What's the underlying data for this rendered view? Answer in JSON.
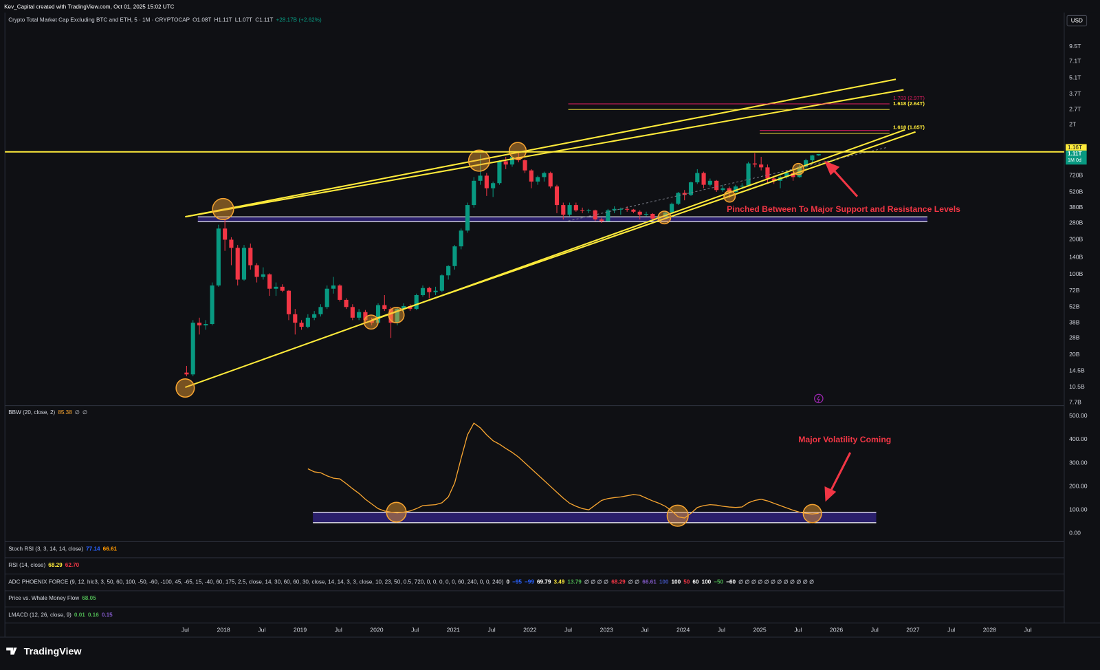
{
  "header": "Kev_Capital created with TradingView.com, Oct 01, 2025 15:02 UTC",
  "currency_button": "USD",
  "brand": "TradingView",
  "chart_data": [
    {
      "type": "candlestick",
      "title": "Crypto Total Market Cap Excluding BTC and ETH, 5 · 1M · CRYPTOCAP",
      "ohlc_legend": [
        "O1.08T",
        "H1.11T",
        "L1.07T",
        "C1.11T",
        "+28.17B (+2.62%)"
      ],
      "log_scale": true,
      "ylim": [
        7.24,
        18800
      ],
      "yticks": [
        {
          "value": 9500,
          "label": "9.5T"
        },
        {
          "value": 7100,
          "label": "7.1T"
        },
        {
          "value": 5100,
          "label": "5.1T"
        },
        {
          "value": 3700,
          "label": "3.7T"
        },
        {
          "value": 2700,
          "label": "2.7T"
        },
        {
          "value": 2000,
          "label": "2T"
        },
        {
          "value": 720,
          "label": "720B"
        },
        {
          "value": 520,
          "label": "520B"
        },
        {
          "value": 380,
          "label": "380B"
        },
        {
          "value": 280,
          "label": "280B"
        },
        {
          "value": 200,
          "label": "200B"
        },
        {
          "value": 140,
          "label": "140B"
        },
        {
          "value": 100,
          "label": "100B"
        },
        {
          "value": 72,
          "label": "72B"
        },
        {
          "value": 52,
          "label": "52B"
        },
        {
          "value": 38,
          "label": "38B"
        },
        {
          "value": 28,
          "label": "28B"
        },
        {
          "value": 20,
          "label": "20B"
        },
        {
          "value": 14.5,
          "label": "14.5B"
        },
        {
          "value": 10.5,
          "label": "10.5B"
        },
        {
          "value": 7.7,
          "label": "7.7B"
        }
      ],
      "x_axis_labels": [
        "Jul",
        "2018",
        "Jul",
        "2019",
        "Jul",
        "2020",
        "Jul",
        "2021",
        "Jul",
        "2022",
        "Jul",
        "2023",
        "Jul",
        "2024",
        "Jul",
        "2025",
        "Jul",
        "2026",
        "Jul",
        "2027",
        "Jul",
        "2028",
        "Jul"
      ],
      "up_color": "#089981",
      "down_color": "#f23645",
      "open": [
        14,
        13.5,
        38,
        36,
        37,
        80,
        250,
        200,
        170,
        90,
        170,
        120,
        95,
        100,
        75,
        78,
        72,
        45,
        38,
        35,
        42,
        45,
        52,
        75,
        80,
        60,
        52,
        42,
        47,
        40,
        38,
        54,
        50,
        38,
        50,
        53,
        50,
        66,
        76,
        70,
        72,
        98,
        118,
        175,
        240,
        400,
        650,
        720,
        560,
        620,
        960,
        900,
        1050,
        980,
        800,
        640,
        700,
        760,
        580,
        400,
        330,
        400,
        360,
        355,
        360,
        300,
        290,
        360,
        370,
        370,
        365,
        350,
        330,
        335,
        305,
        315,
        345,
        410,
        510,
        490,
        630,
        760,
        600,
        650,
        540,
        560,
        520,
        580,
        590,
        920,
        900,
        850,
        680,
        650,
        700,
        760,
        700,
        860,
        980,
        1080
      ],
      "high": [
        16,
        40,
        42,
        40,
        85,
        270,
        300,
        210,
        180,
        180,
        185,
        125,
        115,
        102,
        85,
        82,
        73,
        50,
        40,
        45,
        48,
        55,
        80,
        95,
        82,
        62,
        55,
        50,
        49,
        42,
        56,
        66,
        52,
        52,
        56,
        55,
        68,
        80,
        78,
        78,
        100,
        120,
        180,
        250,
        420,
        700,
        1100,
        760,
        640,
        980,
        1050,
        1080,
        1150,
        1000,
        820,
        720,
        780,
        780,
        600,
        420,
        420,
        420,
        380,
        370,
        365,
        310,
        370,
        390,
        380,
        390,
        370,
        360,
        350,
        340,
        320,
        350,
        420,
        520,
        540,
        640,
        820,
        780,
        680,
        660,
        600,
        580,
        600,
        620,
        950,
        1130,
        1050,
        900,
        720,
        720,
        800,
        780,
        900,
        1010,
        1090,
        1110
      ],
      "low": [
        13,
        13,
        30,
        33,
        36,
        78,
        160,
        120,
        80,
        88,
        110,
        85,
        90,
        65,
        65,
        70,
        40,
        30,
        33,
        34,
        40,
        43,
        50,
        68,
        58,
        50,
        40,
        40,
        38,
        36,
        38,
        48,
        28,
        36,
        46,
        48,
        49,
        64,
        62,
        66,
        70,
        90,
        110,
        165,
        230,
        380,
        600,
        480,
        470,
        600,
        820,
        860,
        940,
        760,
        560,
        600,
        640,
        560,
        340,
        300,
        320,
        350,
        340,
        340,
        290,
        280,
        288,
        340,
        330,
        350,
        340,
        300,
        320,
        300,
        295,
        310,
        340,
        400,
        440,
        480,
        610,
        560,
        580,
        520,
        520,
        460,
        510,
        550,
        580,
        850,
        800,
        620,
        610,
        560,
        680,
        650,
        690,
        820,
        920,
        1070
      ],
      "close": [
        13.5,
        38,
        36,
        37,
        80,
        250,
        200,
        170,
        90,
        170,
        120,
        95,
        100,
        75,
        78,
        72,
        45,
        38,
        35,
        42,
        45,
        52,
        75,
        80,
        60,
        52,
        42,
        47,
        40,
        38,
        54,
        50,
        38,
        50,
        53,
        50,
        66,
        76,
        70,
        72,
        98,
        118,
        175,
        240,
        400,
        650,
        720,
        560,
        620,
        960,
        900,
        1050,
        980,
        800,
        640,
        700,
        760,
        580,
        400,
        330,
        400,
        360,
        355,
        360,
        300,
        290,
        360,
        370,
        370,
        365,
        350,
        330,
        335,
        305,
        315,
        345,
        410,
        510,
        490,
        630,
        760,
        600,
        650,
        540,
        560,
        520,
        580,
        590,
        920,
        900,
        850,
        680,
        650,
        700,
        760,
        700,
        860,
        980,
        1080,
        1110
      ],
      "resistance_level": {
        "value": 1160,
        "label": "1.16T"
      },
      "last_price_label": "1.11T",
      "countdown_label": "1M 0d",
      "fib_labels": [
        "1.703 (2.97T)",
        "1.618 (2.64T)",
        "1.618 (1.65T)"
      ],
      "annotation": "Pinched Between To Major Support and Resistance Levels"
    },
    {
      "type": "line",
      "title": "BBW (20, close, 2)",
      "legend_values": [
        "85.38",
        "∅",
        "∅"
      ],
      "color": "#f7a531",
      "ylim": [
        -36,
        539
      ],
      "yticks": [
        {
          "value": 500,
          "label": "500.00"
        },
        {
          "value": 400,
          "label": "400.00"
        },
        {
          "value": 300,
          "label": "300.00"
        },
        {
          "value": 200,
          "label": "200.00"
        },
        {
          "value": 100,
          "label": "100.00"
        },
        {
          "value": 0,
          "label": "0.00"
        }
      ],
      "values": [
        null,
        null,
        null,
        null,
        null,
        null,
        null,
        null,
        null,
        null,
        null,
        null,
        null,
        null,
        null,
        null,
        null,
        null,
        null,
        275,
        262,
        258,
        245,
        235,
        232,
        212,
        190,
        170,
        145,
        125,
        105,
        95,
        90,
        87,
        90,
        95,
        105,
        118,
        120,
        122,
        130,
        155,
        215,
        320,
        420,
        470,
        450,
        420,
        395,
        380,
        362,
        345,
        325,
        300,
        275,
        250,
        225,
        200,
        175,
        150,
        128,
        115,
        105,
        100,
        120,
        140,
        148,
        152,
        155,
        160,
        165,
        162,
        150,
        138,
        128,
        115,
        95,
        70,
        65,
        85,
        110,
        118,
        122,
        120,
        115,
        112,
        110,
        112,
        130,
        140,
        145,
        138,
        128,
        118,
        108,
        98,
        90,
        85,
        82,
        85
      ],
      "annotation": "Major Volatility Coming"
    }
  ],
  "indicators": [
    {
      "name": "Stoch RSI (3, 3, 14, 14, close)",
      "values": [
        {
          "text": "77.14",
          "color": "#2962ff"
        },
        {
          "text": "66.61",
          "color": "#ff9800"
        }
      ]
    },
    {
      "name": "RSI (14, close)",
      "values": [
        {
          "text": "68.29",
          "color": "#ffeb3b"
        },
        {
          "text": "62.70",
          "color": "#f23645"
        }
      ]
    },
    {
      "name": "ADC PHOENIX FORCE (9, 12, hlc3, 3, 50, 60, 100, -50, -60, -100, 45, -65, 15, -40, 60, 175, 2.5, close, 14, 30, 60, 60, 30, close, 14, 14, 3, 3, close, 10, 23, 50, 0.5, 720, 0, 0, 0, 0, 0, 60, 240, 0, 0, 240)",
      "values": [
        {
          "text": "0",
          "color": "#ffffff"
        },
        {
          "text": "−95",
          "color": "#2962ff"
        },
        {
          "text": "−99",
          "color": "#2962ff"
        },
        {
          "text": "69.79",
          "color": "#ffffff"
        },
        {
          "text": "3.49",
          "color": "#ffeb3b"
        },
        {
          "text": "13.79",
          "color": "#4caf50"
        },
        {
          "text": "∅ ∅ ∅ ∅",
          "color": "#b2b5be"
        },
        {
          "text": "68.29",
          "color": "#f23645"
        },
        {
          "text": "∅ ∅",
          "color": "#b2b5be"
        },
        {
          "text": "66.61",
          "color": "#7e57c2"
        },
        {
          "text": "100",
          "color": "#3f51b5"
        },
        {
          "text": "100",
          "color": "#ffffff"
        },
        {
          "text": "50",
          "color": "#f23645"
        },
        {
          "text": "60",
          "color": "#ffffff"
        },
        {
          "text": "100",
          "color": "#ffffff"
        },
        {
          "text": "−50",
          "color": "#4caf50"
        },
        {
          "text": "−60",
          "color": "#ffffff"
        },
        {
          "text": "∅ ∅ ∅ ∅ ∅ ∅ ∅ ∅ ∅ ∅ ∅ ∅",
          "color": "#b2b5be"
        }
      ]
    },
    {
      "name": "Price vs. Whale Money Flow",
      "values": [
        {
          "text": "68.05",
          "color": "#4caf50"
        }
      ]
    },
    {
      "name": "LMACD (12, 26, close, 9)",
      "values": [
        {
          "text": "0.01",
          "color": "#4caf50"
        },
        {
          "text": "0.16",
          "color": "#4caf50"
        },
        {
          "text": "0.15",
          "color": "#7e57c2"
        }
      ]
    }
  ]
}
